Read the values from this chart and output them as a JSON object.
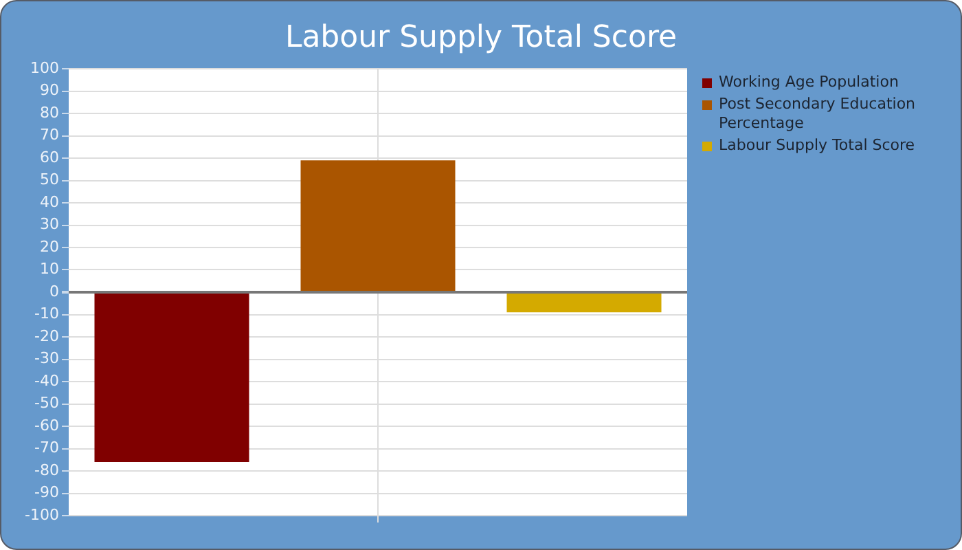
{
  "chart_data": {
    "type": "bar",
    "title": "Labour Supply Total Score",
    "categories": [
      null
    ],
    "series": [
      {
        "name": "Working Age Population",
        "color": "#800000",
        "values": [
          -76
        ]
      },
      {
        "name": "Post Secondary Education Percentage",
        "color": "#aa5500",
        "values": [
          59
        ]
      },
      {
        "name": "Labour Supply Total Score",
        "color": "#d4aa00",
        "values": [
          -9
        ]
      }
    ],
    "ylim": [
      -100,
      100
    ],
    "yticks": [
      -100,
      -90,
      -80,
      -70,
      -60,
      -50,
      -40,
      -30,
      -20,
      -10,
      0,
      10,
      20,
      30,
      40,
      50,
      60,
      70,
      80,
      90,
      100
    ],
    "grid": true,
    "legend": "right",
    "tick_labels": "y"
  }
}
